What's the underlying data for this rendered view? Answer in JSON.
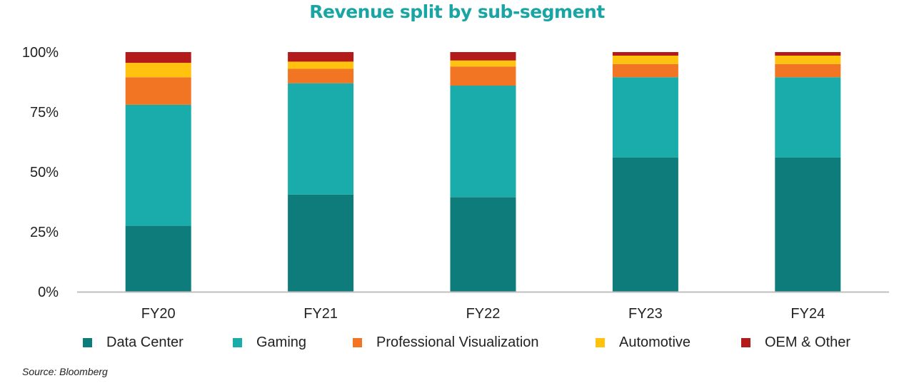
{
  "colors": {
    "title": "#1aa5a5",
    "axis": "#bfbfbf"
  },
  "chart_data": {
    "type": "bar",
    "stacked": true,
    "title": "Revenue split by sub-segment",
    "categories": [
      "FY20",
      "FY21",
      "FY22",
      "FY23",
      "FY24"
    ],
    "y_tick_labels": [
      "0%",
      "25%",
      "50%",
      "75%",
      "100%"
    ],
    "ylim": [
      0,
      100
    ],
    "grid": false,
    "legend_position": "bottom",
    "series": [
      {
        "name": "Data Center",
        "color": "#0e7c7b",
        "values": [
          27.5,
          40.5,
          39.5,
          56,
          56
        ]
      },
      {
        "name": "Gaming",
        "color": "#1aabab",
        "values": [
          50.5,
          46.5,
          46.5,
          33.5,
          33.5
        ]
      },
      {
        "name": "Professional Visualization",
        "color": "#f27524",
        "values": [
          11.5,
          6,
          8,
          5.5,
          5.5
        ]
      },
      {
        "name": "Automotive",
        "color": "#ffc20e",
        "values": [
          6,
          3,
          2.5,
          3.5,
          3.5
        ]
      },
      {
        "name": "OEM & Other",
        "color": "#b31b1b",
        "values": [
          4.5,
          4,
          3.5,
          1.5,
          1.5
        ]
      }
    ]
  },
  "source": "Source: Bloomberg"
}
